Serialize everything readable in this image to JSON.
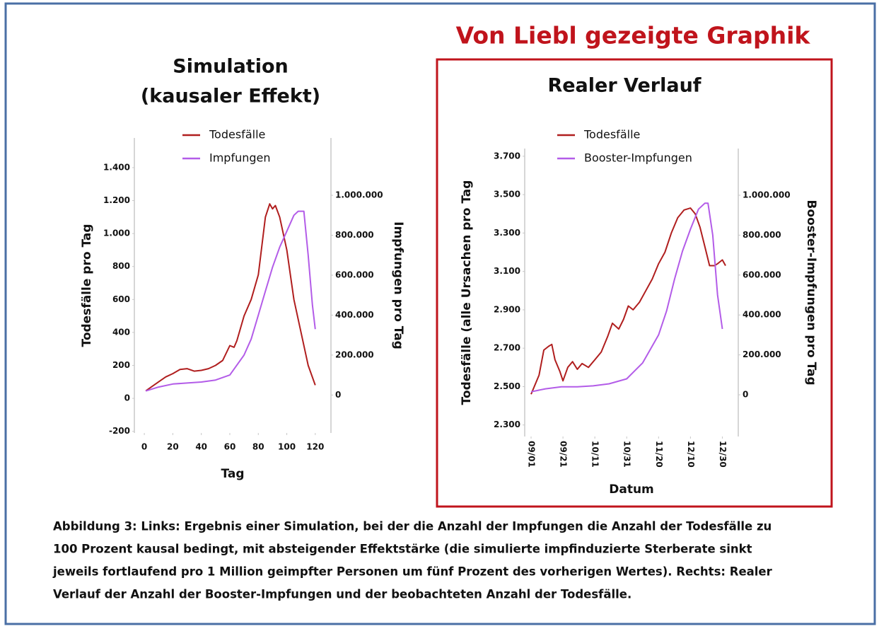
{
  "header": "Von Liebl gezeigte Graphik",
  "caption": [
    "Abbildung 3: Links: Ergebnis einer Simulation, bei der die Anzahl der Impfungen die Anzahl der Todesfälle zu",
    "100 Prozent kausal bedingt, mit absteigender Effektstärke (die simulierte impfinduzierte Sterberate sinkt",
    "jeweils fortlaufend pro 1 Million geimpfter Personen um fünf Prozent des vorherigen Wertes). Rechts: Realer",
    "Verlauf der Anzahl der Booster-Impfungen und der beobachteten Anzahl der Todesfälle."
  ],
  "chart_data": [
    {
      "type": "line",
      "title": "Simulation",
      "subtitle": "(kausaler Effekt)",
      "xlabel": "Tag",
      "ylabel": "Todesfälle  pro Tag",
      "y2label": "Impfungen pro Tag",
      "xlim": [
        -7,
        131
      ],
      "xticks": [
        0,
        20,
        40,
        60,
        80,
        100,
        120
      ],
      "ylim": [
        -210,
        1580
      ],
      "yticks": [
        -200,
        0,
        200,
        400,
        600,
        800,
        {
          "value": 1000,
          "label": "1.000"
        },
        {
          "value": 1200,
          "label": "1.200"
        },
        {
          "value": 1400,
          "label": "1.400"
        }
      ],
      "y2lim": [
        -190000,
        1287000
      ],
      "y2ticks": [
        0,
        {
          "value": 200000,
          "label": "200.000"
        },
        {
          "value": 400000,
          "label": "400.000"
        },
        {
          "value": 600000,
          "label": "600.000"
        },
        {
          "value": 800000,
          "label": "800.000"
        },
        {
          "value": 1000000,
          "label": "1.000.000"
        }
      ],
      "legend": "top",
      "series": [
        {
          "name": "Todesfälle",
          "color": "#b01e1e",
          "x": [
            1,
            5,
            10,
            15,
            20,
            25,
            30,
            35,
            40,
            45,
            50,
            55,
            60,
            63,
            65,
            70,
            75,
            80,
            85,
            88,
            90,
            92,
            95,
            100,
            105,
            110,
            115,
            120
          ],
          "values": [
            45,
            70,
            100,
            130,
            150,
            175,
            180,
            165,
            170,
            180,
            200,
            230,
            320,
            310,
            350,
            500,
            600,
            750,
            1100,
            1180,
            1150,
            1170,
            1100,
            900,
            600,
            400,
            200,
            80
          ]
        },
        {
          "name": "Impfungen",
          "color": "#b35ce8",
          "axis": "y2",
          "x": [
            1,
            10,
            20,
            30,
            40,
            50,
            60,
            70,
            75,
            80,
            85,
            90,
            95,
            100,
            105,
            108,
            112,
            115,
            118,
            120
          ],
          "values": [
            20000,
            40000,
            55000,
            60000,
            65000,
            75000,
            100000,
            200000,
            280000,
            400000,
            520000,
            640000,
            740000,
            820000,
            900000,
            920000,
            920000,
            700000,
            450000,
            330000
          ]
        }
      ]
    },
    {
      "type": "line",
      "title": "Realer Verlauf",
      "xlabel": "Datum",
      "ylabel": "Todesfälle (alle Ursachen  pro Tag",
      "y2label": "Booster-Impfungen pro Tag",
      "xlim": [
        "08/28",
        "01/09"
      ],
      "xticks": [
        "09/01",
        "09/21",
        "10/11",
        "10/31",
        "11/20",
        "12/10",
        "12/30"
      ],
      "ylim": [
        2240,
        3740
      ],
      "yticks": [
        {
          "value": 2300,
          "label": "2.300"
        },
        {
          "value": 2500,
          "label": "2.500"
        },
        {
          "value": 2700,
          "label": "2.700"
        },
        {
          "value": 2900,
          "label": "2.900"
        },
        {
          "value": 3100,
          "label": "3.100"
        },
        {
          "value": 3300,
          "label": "3.300"
        },
        {
          "value": 3500,
          "label": "3.500"
        },
        {
          "value": 3700,
          "label": "3.700"
        }
      ],
      "y2lim": [
        -209000,
        1234000
      ],
      "y2ticks": [
        0,
        {
          "value": 200000,
          "label": "200.000"
        },
        {
          "value": 400000,
          "label": "400.000"
        },
        {
          "value": 600000,
          "label": "600.000"
        },
        {
          "value": 800000,
          "label": "800.000"
        },
        {
          "value": 1000000,
          "label": "1.000.000"
        }
      ],
      "legend": "top",
      "series": [
        {
          "name": "Todesfälle",
          "color": "#b01e1e",
          "x": [
            "09/01",
            "09/03",
            "09/06",
            "09/09",
            "09/12",
            "09/14",
            "09/16",
            "09/19",
            "09/21",
            "09/24",
            "09/27",
            "09/30",
            "10/03",
            "10/07",
            "10/11",
            "10/15",
            "10/19",
            "10/22",
            "10/26",
            "10/29",
            "11/01",
            "11/04",
            "11/08",
            "11/12",
            "11/16",
            "11/20",
            "11/24",
            "11/28",
            "12/02",
            "12/06",
            "12/10",
            "12/13",
            "12/16",
            "12/19",
            "12/22",
            "12/25",
            "12/27",
            "12/30",
            "01/01"
          ],
          "values": [
            2460,
            2500,
            2560,
            2690,
            2710,
            2720,
            2640,
            2580,
            2530,
            2600,
            2630,
            2590,
            2620,
            2600,
            2640,
            2680,
            2760,
            2830,
            2800,
            2850,
            2920,
            2900,
            2940,
            3000,
            3060,
            3140,
            3200,
            3300,
            3380,
            3420,
            3430,
            3400,
            3330,
            3230,
            3130,
            3130,
            3140,
            3160,
            3130
          ]
        },
        {
          "name": "Booster-Impfungen",
          "color": "#b35ce8",
          "axis": "y2",
          "x": [
            "09/01",
            "09/10",
            "09/20",
            "09/30",
            "10/10",
            "10/20",
            "10/31",
            "11/05",
            "11/10",
            "11/15",
            "11/20",
            "11/25",
            "11/30",
            "12/05",
            "12/10",
            "12/15",
            "12/19",
            "12/21",
            "12/24",
            "12/27",
            "12/30"
          ],
          "values": [
            15000,
            30000,
            40000,
            40000,
            45000,
            55000,
            80000,
            120000,
            160000,
            230000,
            300000,
            420000,
            580000,
            720000,
            830000,
            930000,
            960000,
            960000,
            800000,
            500000,
            330000
          ]
        }
      ]
    }
  ]
}
